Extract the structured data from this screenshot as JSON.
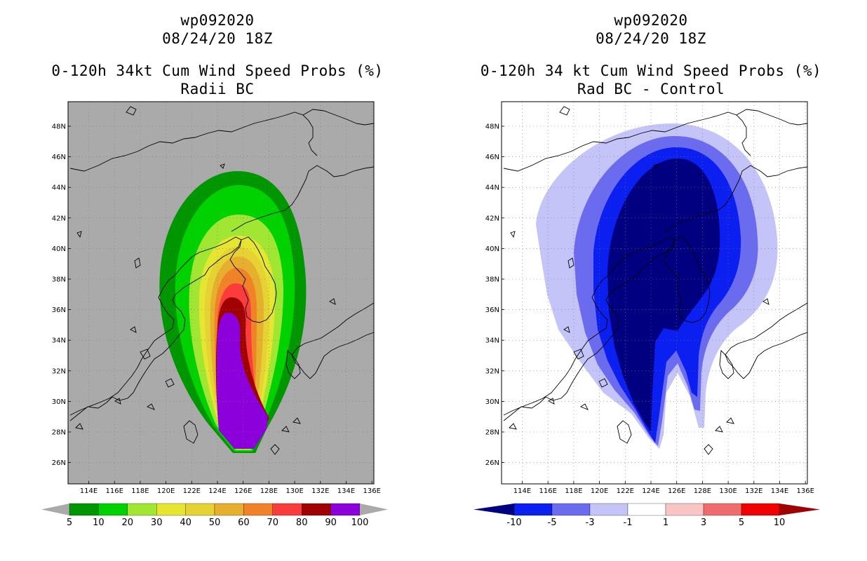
{
  "left_panel": {
    "storm_id": "wp092020",
    "datetime": "08/24/20 18Z",
    "title": "0-120h 34kt Cum Wind Speed Probs (%)",
    "subtitle": "Radii BC",
    "colorbar": {
      "labels": [
        "5",
        "10",
        "20",
        "30",
        "40",
        "50",
        "60",
        "70",
        "80",
        "90",
        "100"
      ],
      "colors": [
        "#009600",
        "#00d200",
        "#a0e632",
        "#e6e632",
        "#e6d232",
        "#e6af2d",
        "#f08228",
        "#fa3c3c",
        "#a00000",
        "#8c00dc"
      ]
    }
  },
  "right_panel": {
    "storm_id": "wp092020",
    "datetime": "08/24/20 18Z",
    "title": "0-120h 34 kt Cum Wind Speed Probs (%)",
    "subtitle": "Rad BC - Control",
    "colorbar": {
      "labels": [
        "-10",
        "-5",
        "-3",
        "-1",
        "1",
        "3",
        "5",
        "10"
      ],
      "colors": [
        "#000080",
        "#0a1ff0",
        "#6b6bf0",
        "#c4c4f8",
        "#ffffff",
        "#f8c4c4",
        "#f06b6b",
        "#f00000",
        "#a00000"
      ]
    }
  },
  "axes": {
    "lon_labels": [
      "114E",
      "116E",
      "118E",
      "120E",
      "122E",
      "124E",
      "126E",
      "128E",
      "130E",
      "132E",
      "134E",
      "136E"
    ],
    "lat_labels": [
      "48N",
      "46N",
      "44N",
      "42N",
      "40N",
      "38N",
      "36N",
      "34N",
      "32N",
      "30N",
      "28N",
      "26N"
    ]
  },
  "colors": {
    "land_background": "#aaaaaa",
    "left_fill_100": "#8c00dc",
    "right_fill_min": "#000080"
  }
}
